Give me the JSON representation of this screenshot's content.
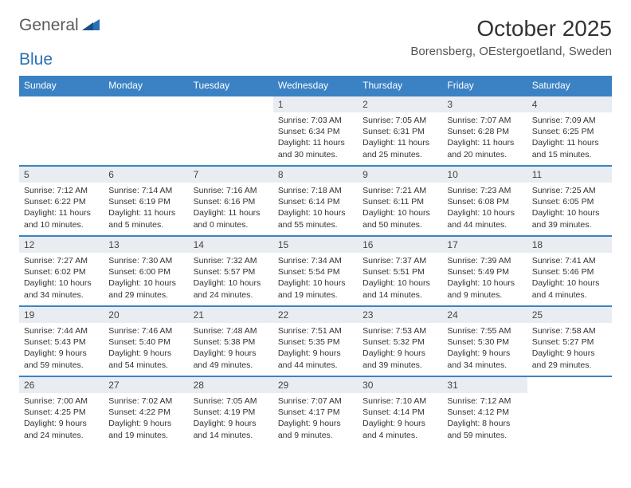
{
  "logo": {
    "word1": "General",
    "word2": "Blue"
  },
  "title": "October 2025",
  "location": "Borensberg, OEstergoetland, Sweden",
  "accent_color": "#3b82c4",
  "header_bg": "#e9edf1",
  "day_names": [
    "Sunday",
    "Monday",
    "Tuesday",
    "Wednesday",
    "Thursday",
    "Friday",
    "Saturday"
  ],
  "weeks": [
    [
      null,
      null,
      null,
      {
        "num": "1",
        "sunrise": "Sunrise: 7:03 AM",
        "sunset": "Sunset: 6:34 PM",
        "day": "Daylight: 11 hours and 30 minutes."
      },
      {
        "num": "2",
        "sunrise": "Sunrise: 7:05 AM",
        "sunset": "Sunset: 6:31 PM",
        "day": "Daylight: 11 hours and 25 minutes."
      },
      {
        "num": "3",
        "sunrise": "Sunrise: 7:07 AM",
        "sunset": "Sunset: 6:28 PM",
        "day": "Daylight: 11 hours and 20 minutes."
      },
      {
        "num": "4",
        "sunrise": "Sunrise: 7:09 AM",
        "sunset": "Sunset: 6:25 PM",
        "day": "Daylight: 11 hours and 15 minutes."
      }
    ],
    [
      {
        "num": "5",
        "sunrise": "Sunrise: 7:12 AM",
        "sunset": "Sunset: 6:22 PM",
        "day": "Daylight: 11 hours and 10 minutes."
      },
      {
        "num": "6",
        "sunrise": "Sunrise: 7:14 AM",
        "sunset": "Sunset: 6:19 PM",
        "day": "Daylight: 11 hours and 5 minutes."
      },
      {
        "num": "7",
        "sunrise": "Sunrise: 7:16 AM",
        "sunset": "Sunset: 6:16 PM",
        "day": "Daylight: 11 hours and 0 minutes."
      },
      {
        "num": "8",
        "sunrise": "Sunrise: 7:18 AM",
        "sunset": "Sunset: 6:14 PM",
        "day": "Daylight: 10 hours and 55 minutes."
      },
      {
        "num": "9",
        "sunrise": "Sunrise: 7:21 AM",
        "sunset": "Sunset: 6:11 PM",
        "day": "Daylight: 10 hours and 50 minutes."
      },
      {
        "num": "10",
        "sunrise": "Sunrise: 7:23 AM",
        "sunset": "Sunset: 6:08 PM",
        "day": "Daylight: 10 hours and 44 minutes."
      },
      {
        "num": "11",
        "sunrise": "Sunrise: 7:25 AM",
        "sunset": "Sunset: 6:05 PM",
        "day": "Daylight: 10 hours and 39 minutes."
      }
    ],
    [
      {
        "num": "12",
        "sunrise": "Sunrise: 7:27 AM",
        "sunset": "Sunset: 6:02 PM",
        "day": "Daylight: 10 hours and 34 minutes."
      },
      {
        "num": "13",
        "sunrise": "Sunrise: 7:30 AM",
        "sunset": "Sunset: 6:00 PM",
        "day": "Daylight: 10 hours and 29 minutes."
      },
      {
        "num": "14",
        "sunrise": "Sunrise: 7:32 AM",
        "sunset": "Sunset: 5:57 PM",
        "day": "Daylight: 10 hours and 24 minutes."
      },
      {
        "num": "15",
        "sunrise": "Sunrise: 7:34 AM",
        "sunset": "Sunset: 5:54 PM",
        "day": "Daylight: 10 hours and 19 minutes."
      },
      {
        "num": "16",
        "sunrise": "Sunrise: 7:37 AM",
        "sunset": "Sunset: 5:51 PM",
        "day": "Daylight: 10 hours and 14 minutes."
      },
      {
        "num": "17",
        "sunrise": "Sunrise: 7:39 AM",
        "sunset": "Sunset: 5:49 PM",
        "day": "Daylight: 10 hours and 9 minutes."
      },
      {
        "num": "18",
        "sunrise": "Sunrise: 7:41 AM",
        "sunset": "Sunset: 5:46 PM",
        "day": "Daylight: 10 hours and 4 minutes."
      }
    ],
    [
      {
        "num": "19",
        "sunrise": "Sunrise: 7:44 AM",
        "sunset": "Sunset: 5:43 PM",
        "day": "Daylight: 9 hours and 59 minutes."
      },
      {
        "num": "20",
        "sunrise": "Sunrise: 7:46 AM",
        "sunset": "Sunset: 5:40 PM",
        "day": "Daylight: 9 hours and 54 minutes."
      },
      {
        "num": "21",
        "sunrise": "Sunrise: 7:48 AM",
        "sunset": "Sunset: 5:38 PM",
        "day": "Daylight: 9 hours and 49 minutes."
      },
      {
        "num": "22",
        "sunrise": "Sunrise: 7:51 AM",
        "sunset": "Sunset: 5:35 PM",
        "day": "Daylight: 9 hours and 44 minutes."
      },
      {
        "num": "23",
        "sunrise": "Sunrise: 7:53 AM",
        "sunset": "Sunset: 5:32 PM",
        "day": "Daylight: 9 hours and 39 minutes."
      },
      {
        "num": "24",
        "sunrise": "Sunrise: 7:55 AM",
        "sunset": "Sunset: 5:30 PM",
        "day": "Daylight: 9 hours and 34 minutes."
      },
      {
        "num": "25",
        "sunrise": "Sunrise: 7:58 AM",
        "sunset": "Sunset: 5:27 PM",
        "day": "Daylight: 9 hours and 29 minutes."
      }
    ],
    [
      {
        "num": "26",
        "sunrise": "Sunrise: 7:00 AM",
        "sunset": "Sunset: 4:25 PM",
        "day": "Daylight: 9 hours and 24 minutes."
      },
      {
        "num": "27",
        "sunrise": "Sunrise: 7:02 AM",
        "sunset": "Sunset: 4:22 PM",
        "day": "Daylight: 9 hours and 19 minutes."
      },
      {
        "num": "28",
        "sunrise": "Sunrise: 7:05 AM",
        "sunset": "Sunset: 4:19 PM",
        "day": "Daylight: 9 hours and 14 minutes."
      },
      {
        "num": "29",
        "sunrise": "Sunrise: 7:07 AM",
        "sunset": "Sunset: 4:17 PM",
        "day": "Daylight: 9 hours and 9 minutes."
      },
      {
        "num": "30",
        "sunrise": "Sunrise: 7:10 AM",
        "sunset": "Sunset: 4:14 PM",
        "day": "Daylight: 9 hours and 4 minutes."
      },
      {
        "num": "31",
        "sunrise": "Sunrise: 7:12 AM",
        "sunset": "Sunset: 4:12 PM",
        "day": "Daylight: 8 hours and 59 minutes."
      },
      null
    ]
  ]
}
